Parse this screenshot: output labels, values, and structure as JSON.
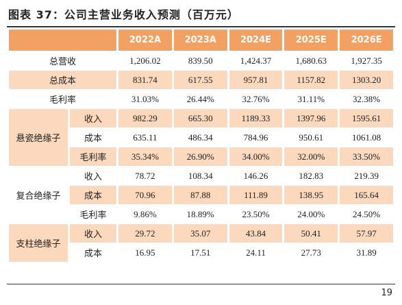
{
  "title": "图表 37：公司主营业务收入预测（百万元）",
  "table": {
    "columns": [
      "2022A",
      "2023A",
      "2024E",
      "2025E",
      "2026E"
    ],
    "totals": [
      {
        "label": "总营收",
        "values": [
          "1,206.02",
          "839.50",
          "1,424.37",
          "1,680.63",
          "1,927.35"
        ]
      },
      {
        "label": "总成本",
        "values": [
          "831.74",
          "617.55",
          "957.81",
          "1157.82",
          "1303.20"
        ]
      },
      {
        "label": "毛利率",
        "values": [
          "31.03%",
          "26.44%",
          "32.76%",
          "31.11%",
          "32.38%"
        ]
      }
    ],
    "segments": [
      {
        "name": "悬瓷绝缘子",
        "rows": [
          {
            "label": "收入",
            "values": [
              "982.29",
              "665.30",
              "1189.33",
              "1397.96",
              "1595.61"
            ]
          },
          {
            "label": "成本",
            "values": [
              "635.11",
              "486.34",
              "784.96",
              "950.61",
              "1061.08"
            ]
          },
          {
            "label": "毛利率",
            "values": [
              "35.34%",
              "26.90%",
              "34.00%",
              "32.00%",
              "33.50%"
            ]
          }
        ]
      },
      {
        "name": "复合绝缘子",
        "rows": [
          {
            "label": "收入",
            "values": [
              "78.72",
              "108.34",
              "146.26",
              "182.83",
              "219.39"
            ]
          },
          {
            "label": "成本",
            "values": [
              "70.96",
              "87.88",
              "111.89",
              "138.95",
              "165.64"
            ]
          },
          {
            "label": "毛利率",
            "values": [
              "9.86%",
              "18.89%",
              "23.50%",
              "24.00%",
              "24.50%"
            ]
          }
        ]
      },
      {
        "name": "支柱绝缘子",
        "rows": [
          {
            "label": "收入",
            "values": [
              "29.72",
              "35.07",
              "43.84",
              "50.41",
              "57.97"
            ]
          },
          {
            "label": "成本",
            "values": [
              "16.95",
              "17.51",
              "24.11",
              "27.73",
              "31.89"
            ]
          }
        ]
      }
    ]
  },
  "page_number": "19"
}
